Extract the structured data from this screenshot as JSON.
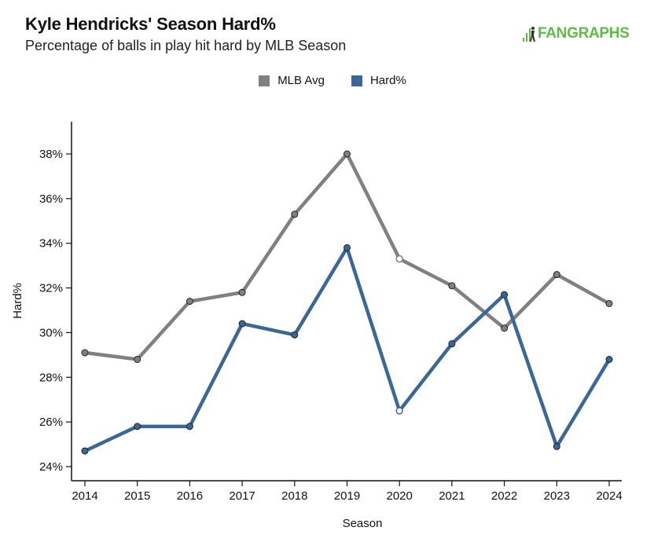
{
  "header": {
    "title": "Kyle Hendricks' Season Hard%",
    "subtitle": "Percentage of balls in play hit hard by MLB Season",
    "logo_text": "FANGRAPHS"
  },
  "colors": {
    "mlb_avg": "#808080",
    "hard": "#3a6796",
    "logo": "#5fbb46"
  },
  "chart_data": {
    "type": "line",
    "title": "Kyle Hendricks' Season Hard%",
    "subtitle": "Percentage of balls in play hit hard by MLB Season",
    "xlabel": "Season",
    "ylabel": "Hard%",
    "x": [
      "2014",
      "2015",
      "2016",
      "2017",
      "2018",
      "2019",
      "2020",
      "2021",
      "2022",
      "2023",
      "2024"
    ],
    "y_ticks": [
      "24%",
      "26%",
      "28%",
      "30%",
      "32%",
      "34%",
      "36%",
      "38%"
    ],
    "ylim": [
      23.5,
      39.5
    ],
    "legend_position": "top-center",
    "grid": false,
    "series": [
      {
        "name": "MLB Avg",
        "color": "#808080",
        "values": [
          29.1,
          28.8,
          31.4,
          31.8,
          35.3,
          38.0,
          33.3,
          32.1,
          30.2,
          32.6,
          31.3
        ]
      },
      {
        "name": "Hard%",
        "color": "#3a6796",
        "values": [
          24.7,
          25.8,
          25.8,
          30.4,
          29.9,
          33.8,
          26.5,
          29.5,
          31.7,
          24.9,
          28.8
        ]
      }
    ],
    "hollow_points": [
      "2020"
    ]
  }
}
